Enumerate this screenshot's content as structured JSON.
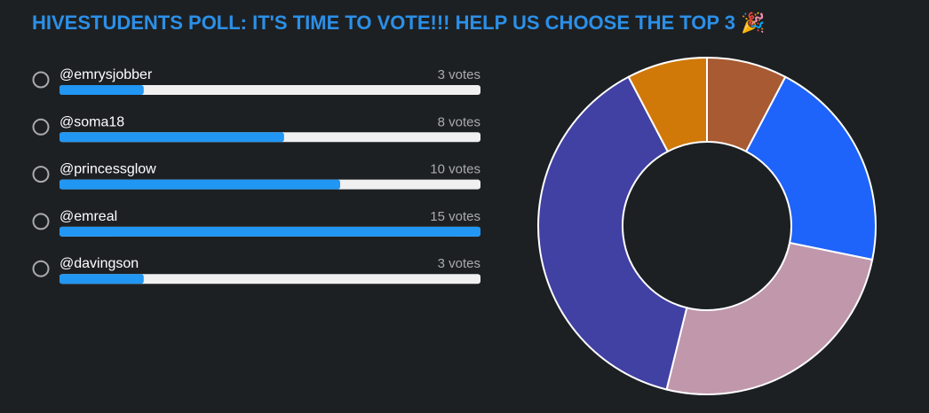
{
  "poll": {
    "title": "HIVESTUDENTS POLL: IT'S TIME TO VOTE!!! HELP US CHOOSE THE TOP 3 🎉",
    "bar_color": "#2196f3",
    "options": [
      {
        "name": "@emrysjobber",
        "votes": {
          "value": 3,
          "label": "3 votes"
        },
        "color": "#a85a32"
      },
      {
        "name": "@soma18",
        "votes": {
          "value": 8,
          "label": "8 votes"
        },
        "color": "#1e63fa"
      },
      {
        "name": "@princessglow",
        "votes": {
          "value": 10,
          "label": "10 votes"
        },
        "color": "#c097ab"
      },
      {
        "name": "@emreal",
        "votes": {
          "value": 15,
          "label": "15 votes"
        },
        "color": "#4140a3"
      },
      {
        "name": "@davingson",
        "votes": {
          "value": 3,
          "label": "3 votes"
        },
        "color": "#d07808"
      }
    ]
  }
}
